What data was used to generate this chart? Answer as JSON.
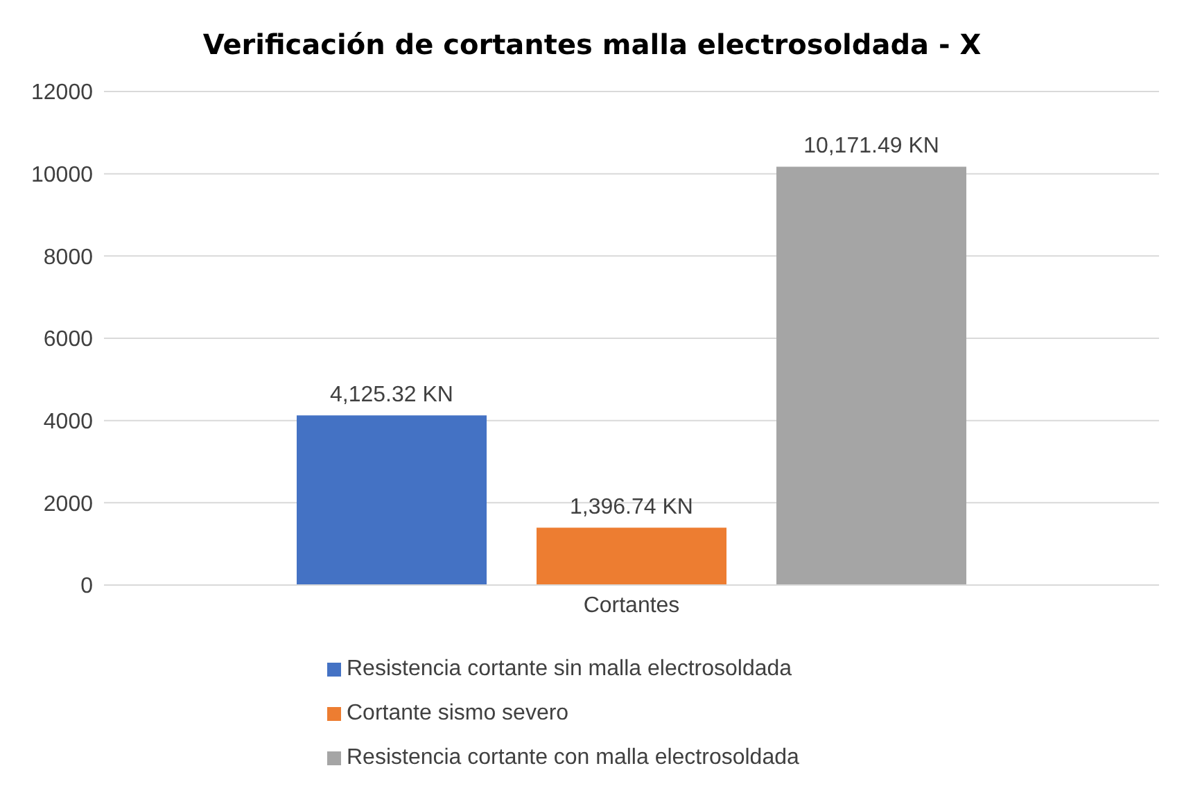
{
  "chart_data": {
    "type": "bar",
    "title": "Verificación de cortantes malla electrosoldada - X",
    "categories": [
      "Cortantes"
    ],
    "series": [
      {
        "name": "Resistencia cortante sin malla electrosoldada",
        "color": "#4472c4",
        "values": [
          4125.32
        ],
        "value_labels": [
          "4,125.32 KN"
        ]
      },
      {
        "name": "Cortante sismo severo",
        "color": "#ed7d31",
        "values": [
          1396.74
        ],
        "value_labels": [
          "1,396.74 KN"
        ]
      },
      {
        "name": "Resistencia cortante con malla electrosoldada",
        "color": "#a5a5a5",
        "values": [
          10171.49
        ],
        "value_labels": [
          "10,171.49 KN"
        ]
      }
    ],
    "ylim": [
      0,
      12000
    ],
    "yticks": [
      0,
      2000,
      4000,
      6000,
      8000,
      10000,
      12000
    ],
    "grid": "y",
    "legend": "bottom"
  }
}
